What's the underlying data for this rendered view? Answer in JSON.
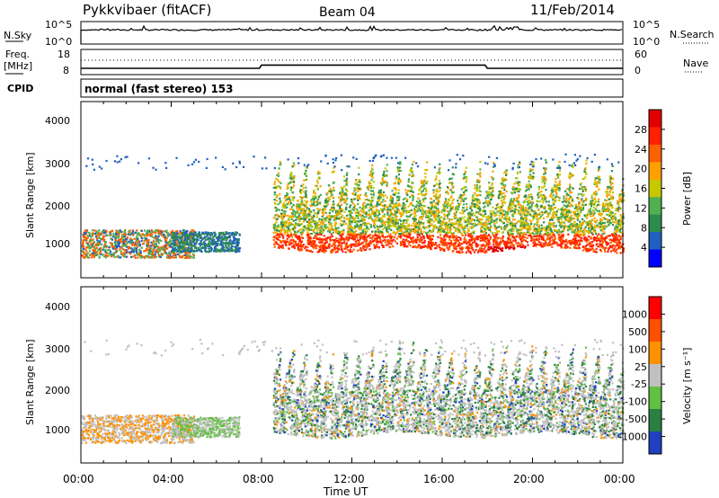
{
  "header": {
    "station": "Pykkvibaer (fitACF)",
    "beam": "Beam 04",
    "date": "11/Feb/2014"
  },
  "sky_panel": {
    "left_label": "N.Sky",
    "left_ticks": [
      "10^5",
      "10^0"
    ],
    "right_ticks": [
      "10^5",
      "10^0"
    ],
    "right_label": "N.Search"
  },
  "freq_panel": {
    "left_label_1": "Freq.",
    "left_label_2": "[MHz]",
    "left_ticks": [
      "18",
      "8"
    ],
    "right_ticks": [
      "60",
      "0"
    ],
    "right_label": "Nave"
  },
  "cpid_panel": {
    "left_label": "CPID",
    "text": "normal (fast stereo) 153"
  },
  "power_panel": {
    "ylabel": "Slant Range [km]",
    "yticks": [
      "4000",
      "3000",
      "2000",
      "1000"
    ],
    "colorbar_label": "Power [dB]",
    "colorbar_ticks": [
      "28",
      "24",
      "20",
      "16",
      "12",
      "8",
      "4"
    ],
    "colors": [
      "#0000ff",
      "#2060c0",
      "#2c8c4c",
      "#50b050",
      "#c8c800",
      "#ffa000",
      "#ff6000",
      "#ff2000",
      "#e00000"
    ]
  },
  "velocity_panel": {
    "ylabel": "Slant Range [km]",
    "yticks": [
      "4000",
      "3000",
      "2000",
      "1000"
    ],
    "colorbar_label": "Velocity [m s⁻¹]",
    "colorbar_ticks": [
      "1000",
      "500",
      "100",
      "25",
      "-25",
      "-100",
      "-500",
      "-1000"
    ],
    "colors": [
      "#2040c0",
      "#2a8040",
      "#60c040",
      "#c0c0c0",
      "#ff9000",
      "#ff5000",
      "#ff0000"
    ]
  },
  "xaxis": {
    "ticks": [
      "00:00",
      "04:00",
      "08:00",
      "12:00",
      "16:00",
      "20:00",
      "00:00"
    ],
    "label": "Time UT"
  },
  "chart_data": [
    {
      "type": "line",
      "name": "N.Sky / N.Search",
      "x": [
        0,
        24
      ],
      "y_scale": "log",
      "ylim": [
        1,
        100000
      ]
    },
    {
      "type": "line",
      "name": "Frequency",
      "x": [
        0,
        7.9,
        8.0,
        17.9,
        18.0,
        24
      ],
      "y": [
        10.5,
        10.5,
        11.8,
        11.8,
        10.5,
        10.5
      ],
      "ylim": [
        8,
        18
      ]
    },
    {
      "type": "heatmap",
      "name": "Power",
      "x_range": [
        0,
        24
      ],
      "ylim": [
        180,
        4600
      ],
      "clim": [
        0,
        30
      ]
    },
    {
      "type": "heatmap",
      "name": "Velocity",
      "x_range": [
        0,
        24
      ],
      "ylim": [
        180,
        4600
      ],
      "clim": [
        -1000,
        1000
      ]
    }
  ]
}
